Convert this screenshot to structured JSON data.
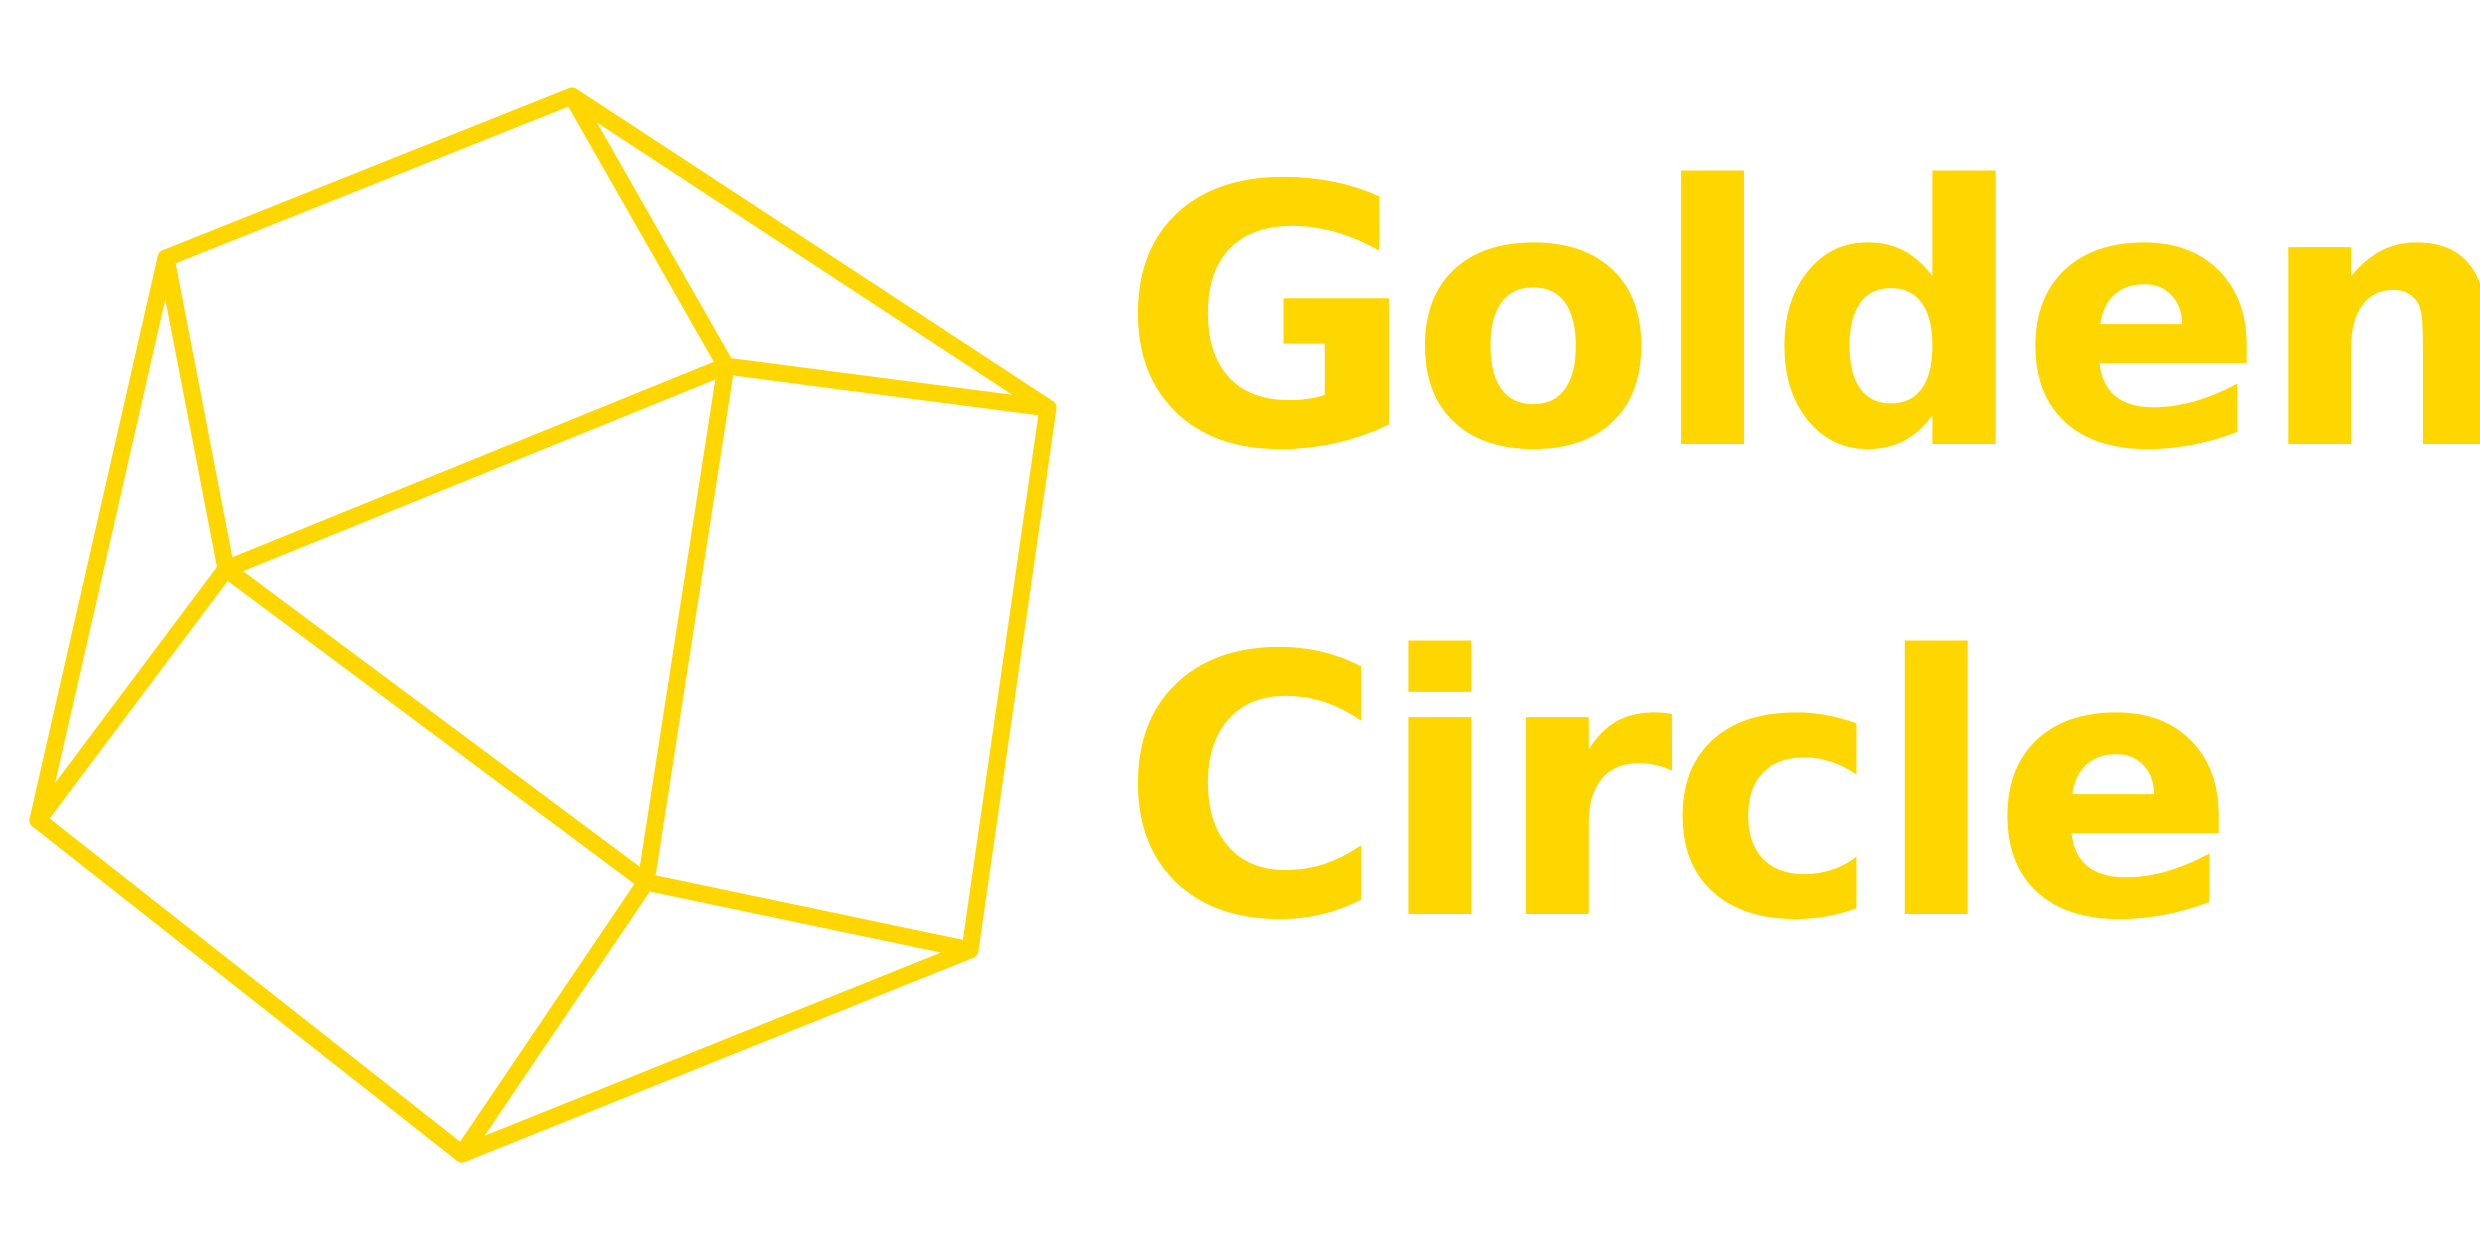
{
  "brand": {
    "name_line_1": "Golden",
    "name_line_2": "Circle",
    "color": "#FFD700",
    "background": "#FFFFFF"
  },
  "emblem": {
    "icon": "geodesic-cube-icon"
  }
}
